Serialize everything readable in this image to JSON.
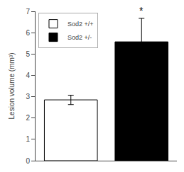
{
  "chart_data": {
    "type": "bar",
    "categories": [
      "Sod2 +/+",
      "Sod2 +/-"
    ],
    "values": [
      2.85,
      5.57
    ],
    "errors": [
      0.22,
      1.1
    ],
    "colors": [
      "white",
      "black"
    ],
    "ylabel": "Lesion volume (mm³)",
    "ylim": [
      0,
      7
    ],
    "yticks": [
      0,
      1,
      2,
      3,
      4,
      5,
      6,
      7
    ],
    "annotations": [
      {
        "text": "*",
        "x": "Sod2 +/-"
      }
    ],
    "legend": "upper left",
    "grid": false,
    "tick_labels": "y"
  }
}
